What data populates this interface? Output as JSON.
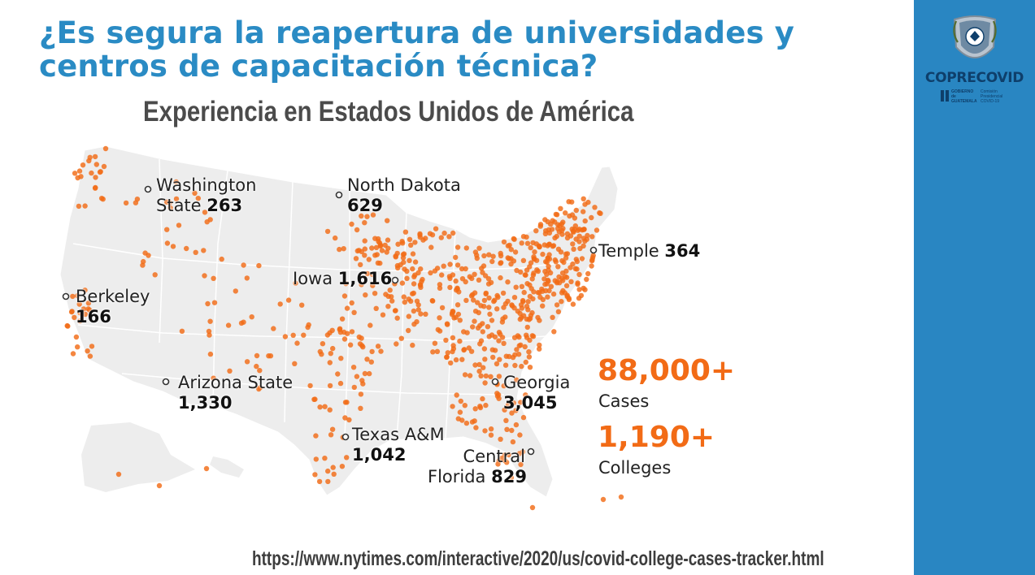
{
  "title": {
    "line1": "¿Es segura la reapertura de universidades y",
    "line2": "centros de capacitación técnica?"
  },
  "subtitle": "Experiencia en Estados Unidos de América",
  "logo": {
    "brand": "COPRECOVID",
    "gov_left": "GOBIERNO de GUATEMALA",
    "gov_right": "Comisión Presidencial COVID-19"
  },
  "map": {
    "colleges": [
      {
        "name": "Washington State",
        "line1": "Washington",
        "line2_name": "State",
        "cases": "263"
      },
      {
        "name": "North Dakota",
        "line1": "North Dakota",
        "cases": "629"
      },
      {
        "name": "Temple",
        "line1": "Temple",
        "cases": "364"
      },
      {
        "name": "Iowa",
        "line1": "Iowa",
        "cases": "1,616"
      },
      {
        "name": "Berkeley",
        "line1": "Berkeley",
        "cases": "166"
      },
      {
        "name": "Arizona State",
        "line1": "Arizona State",
        "cases": "1,330"
      },
      {
        "name": "Georgia",
        "line1": "Georgia",
        "cases": "3,045"
      },
      {
        "name": "Texas A&M",
        "line1": "Texas A&M",
        "cases": "1,042"
      },
      {
        "name": "Central Florida",
        "line1": "Central",
        "line2_name": "Florida",
        "cases": "829"
      }
    ],
    "dot_color": "#f26b16",
    "land_color": "#ededed"
  },
  "stats": {
    "cases_value": "88,000+",
    "cases_label": "Cases",
    "colleges_value": "1,190+",
    "colleges_label": "Colleges"
  },
  "source_url": "https://www.nytimes.com/interactive/2020/us/covid-college-cases-tracker.html"
}
